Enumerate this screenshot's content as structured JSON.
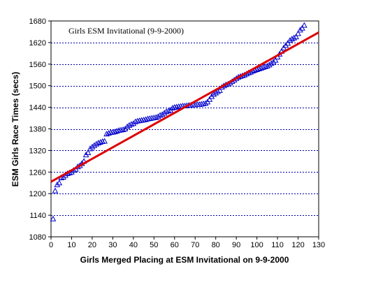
{
  "chart_data": {
    "type": "scatter",
    "title": "Girls ESM Invitational (9-9-2000)",
    "xlabel": "Girls Merged Placing at ESM Invitational on 9-9-2000",
    "ylabel": "ESM Girls Race Times (secs)",
    "xlim": [
      0,
      130
    ],
    "ylim": [
      1080,
      1680
    ],
    "x_ticks": [
      0,
      10,
      20,
      30,
      40,
      50,
      60,
      70,
      80,
      90,
      100,
      110,
      120,
      130
    ],
    "y_ticks": [
      1080,
      1140,
      1200,
      1260,
      1320,
      1380,
      1440,
      1500,
      1560,
      1620,
      1680
    ],
    "x_tick_labels": [
      "0",
      "10",
      "20",
      "30",
      "40",
      "50",
      "60",
      "70",
      "80",
      "90",
      "100",
      "110",
      "120",
      "130"
    ],
    "y_tick_labels": [
      "1080",
      "1140",
      "1200",
      "1260",
      "1320",
      "1380",
      "1440",
      "1500",
      "1560",
      "1620",
      "1680"
    ],
    "grid": {
      "horizontal": true,
      "vertical": false,
      "style": "dotted"
    },
    "series": [
      {
        "marker": "triangle",
        "color": "#0000cc",
        "x": [
          1,
          2,
          3,
          4,
          5,
          6,
          7,
          8,
          9,
          10,
          11,
          12,
          13,
          14,
          15,
          16,
          17,
          18,
          19,
          20,
          21,
          22,
          23,
          24,
          25,
          26,
          27,
          28,
          29,
          30,
          31,
          32,
          33,
          34,
          35,
          36,
          37,
          38,
          39,
          40,
          41,
          42,
          43,
          44,
          45,
          46,
          47,
          48,
          49,
          50,
          51,
          52,
          53,
          54,
          55,
          56,
          57,
          58,
          59,
          60,
          61,
          62,
          63,
          64,
          65,
          66,
          67,
          68,
          69,
          70,
          71,
          72,
          73,
          74,
          75,
          76,
          77,
          78,
          79,
          80,
          81,
          82,
          83,
          84,
          85,
          86,
          87,
          88,
          89,
          90,
          91,
          92,
          93,
          94,
          95,
          96,
          97,
          98,
          99,
          100,
          101,
          102,
          103,
          104,
          105,
          106,
          107,
          108,
          109,
          110,
          111,
          112,
          113,
          114,
          115,
          116,
          117,
          118,
          119,
          120,
          121,
          122,
          123
        ],
        "y": [
          1130,
          1208,
          1225,
          1230,
          1244,
          1246,
          1251,
          1256,
          1258,
          1260,
          1265,
          1268,
          1275,
          1278,
          1284,
          1290,
          1308,
          1314,
          1325,
          1330,
          1334,
          1338,
          1341,
          1343,
          1345,
          1346,
          1366,
          1368,
          1370,
          1371,
          1372,
          1374,
          1376,
          1377,
          1378,
          1380,
          1386,
          1390,
          1393,
          1395,
          1400,
          1402,
          1403,
          1404,
          1405,
          1406,
          1408,
          1409,
          1410,
          1411,
          1412,
          1414,
          1418,
          1420,
          1424,
          1428,
          1430,
          1432,
          1438,
          1440,
          1441,
          1442,
          1443,
          1444,
          1444,
          1445,
          1446,
          1446,
          1447,
          1447,
          1448,
          1448,
          1449,
          1450,
          1451,
          1455,
          1462,
          1470,
          1476,
          1480,
          1484,
          1487,
          1496,
          1500,
          1503,
          1505,
          1508,
          1512,
          1516,
          1520,
          1524,
          1526,
          1528,
          1530,
          1533,
          1536,
          1538,
          1541,
          1543,
          1545,
          1547,
          1549,
          1551,
          1553,
          1555,
          1558,
          1562,
          1566,
          1571,
          1580,
          1588,
          1596,
          1605,
          1612,
          1618,
          1626,
          1630,
          1633,
          1636,
          1645,
          1655,
          1660,
          1668
        ]
      }
    ],
    "trendline": {
      "color": "#dd0000",
      "x": [
        0,
        130
      ],
      "y": [
        1233,
        1648
      ]
    }
  }
}
